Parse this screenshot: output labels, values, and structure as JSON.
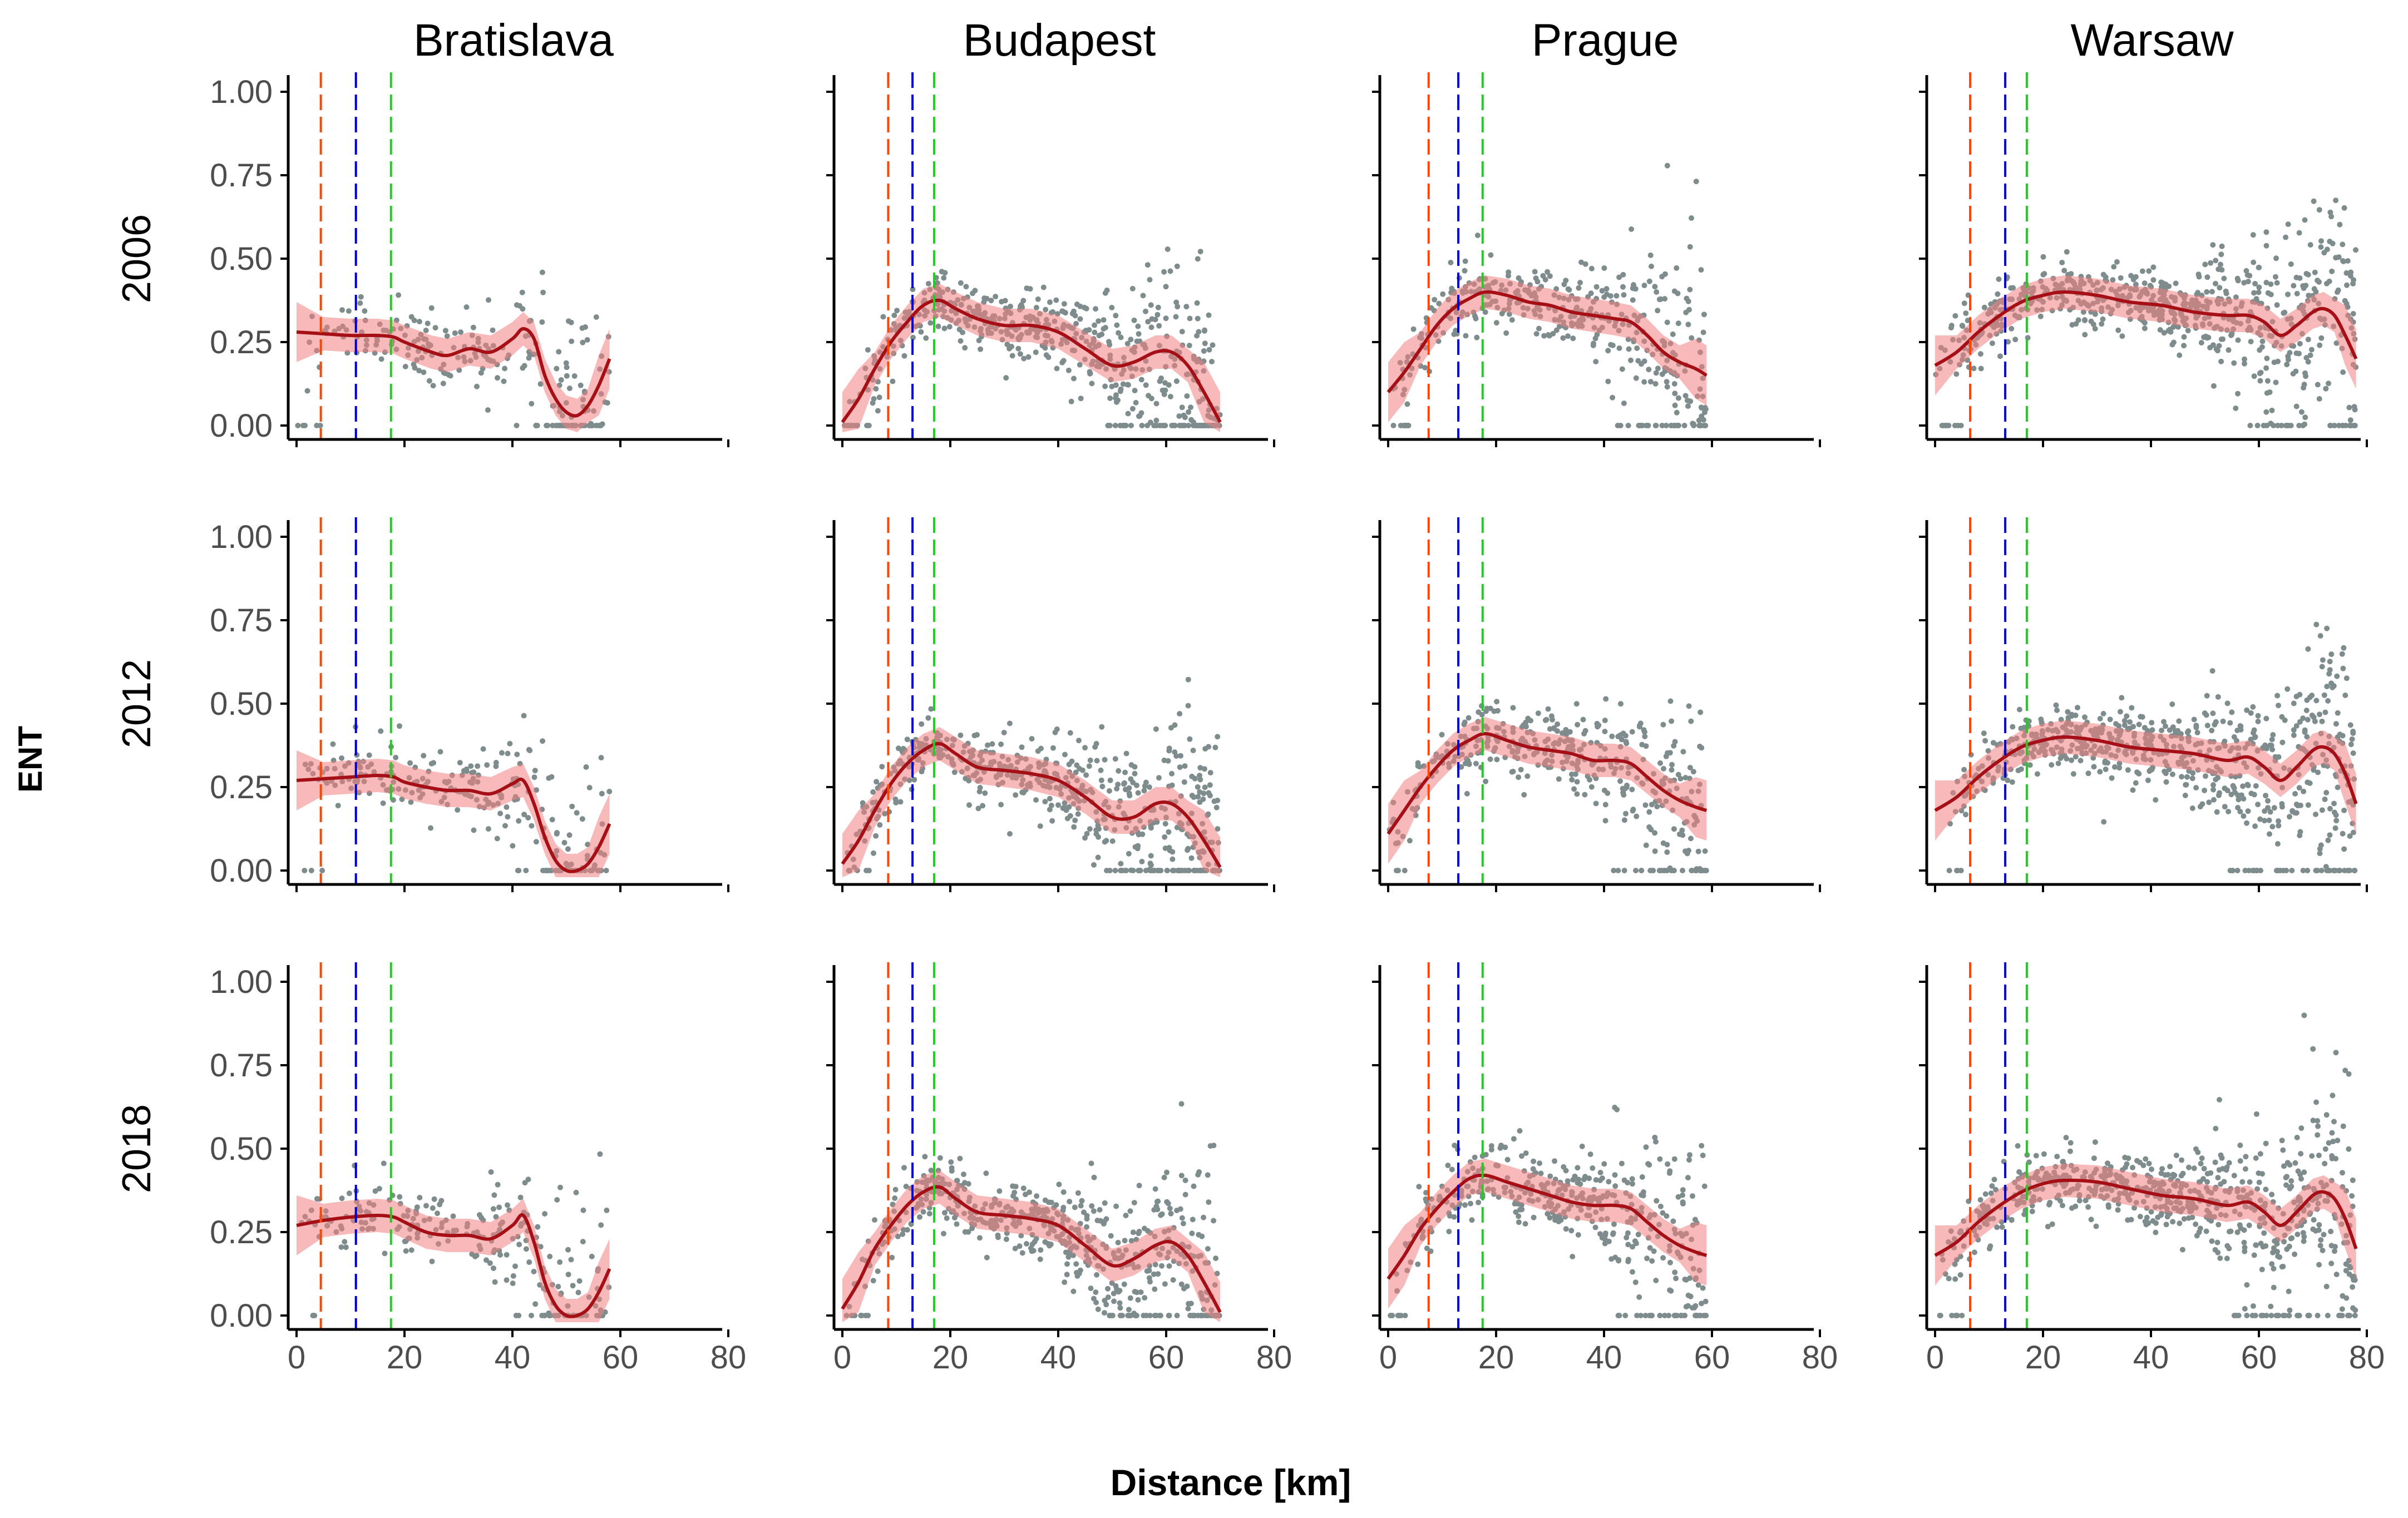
{
  "chart_data": {
    "type": "scatter",
    "ylabel": "ENT",
    "xlabel": "Distance [km]",
    "cities": [
      "Bratislava",
      "Budapest",
      "Prague",
      "Warsaw"
    ],
    "years": [
      "2006",
      "2012",
      "2018"
    ],
    "xlim": [
      0,
      80
    ],
    "ylim": [
      0,
      1
    ],
    "x_ticks": [
      0,
      20,
      40,
      60,
      80
    ],
    "y_ticks": [
      0,
      0.25,
      0.5,
      0.75,
      1
    ],
    "x_tick_labels": [
      "0",
      "20",
      "40",
      "60",
      "80"
    ],
    "y_tick_labels": [
      "0.00",
      "0.25",
      "0.50",
      "0.75",
      "1.00"
    ],
    "colors": {
      "points": "#7f8c8d",
      "smooth_line": "#a50f15",
      "confidence_band": "#f08080",
      "vline_1": "#ff4500",
      "vline_2": "#0000cd",
      "vline_3": "#22cc22",
      "axis": "#000000",
      "tick_label": "#4d4d4d"
    },
    "panels": {
      "Bratislava": {
        "xmax": 58,
        "vlines": [
          4.5,
          11,
          17.5
        ],
        "point_density": 40,
        "smooth": {
          "2006": [
            [
              0,
              0.28
            ],
            [
              5,
              0.275
            ],
            [
              10,
              0.27
            ],
            [
              15,
              0.27
            ],
            [
              18,
              0.265
            ],
            [
              20,
              0.25
            ],
            [
              25,
              0.22
            ],
            [
              28,
              0.21
            ],
            [
              32,
              0.23
            ],
            [
              36,
              0.22
            ],
            [
              40,
              0.26
            ],
            [
              42,
              0.29
            ],
            [
              44,
              0.26
            ],
            [
              46,
              0.15
            ],
            [
              48,
              0.08
            ],
            [
              50,
              0.04
            ],
            [
              52,
              0.03
            ],
            [
              54,
              0.06
            ],
            [
              56,
              0.12
            ],
            [
              58,
              0.2
            ]
          ],
          "2012": [
            [
              0,
              0.27
            ],
            [
              5,
              0.275
            ],
            [
              10,
              0.28
            ],
            [
              15,
              0.285
            ],
            [
              18,
              0.28
            ],
            [
              20,
              0.265
            ],
            [
              24,
              0.25
            ],
            [
              28,
              0.24
            ],
            [
              32,
              0.24
            ],
            [
              36,
              0.23
            ],
            [
              40,
              0.26
            ],
            [
              42,
              0.27
            ],
            [
              44,
              0.2
            ],
            [
              46,
              0.1
            ],
            [
              48,
              0.03
            ],
            [
              50,
              0.0
            ],
            [
              52,
              0.0
            ],
            [
              54,
              0.02
            ],
            [
              56,
              0.07
            ],
            [
              58,
              0.14
            ]
          ],
          "2018": [
            [
              0,
              0.27
            ],
            [
              5,
              0.285
            ],
            [
              10,
              0.295
            ],
            [
              15,
              0.3
            ],
            [
              18,
              0.295
            ],
            [
              20,
              0.28
            ],
            [
              24,
              0.25
            ],
            [
              28,
              0.24
            ],
            [
              32,
              0.24
            ],
            [
              36,
              0.23
            ],
            [
              40,
              0.27
            ],
            [
              42,
              0.3
            ],
            [
              44,
              0.22
            ],
            [
              46,
              0.1
            ],
            [
              48,
              0.03
            ],
            [
              50,
              0.0
            ],
            [
              52,
              0.0
            ],
            [
              54,
              0.02
            ],
            [
              56,
              0.07
            ],
            [
              58,
              0.14
            ]
          ]
        }
      },
      "Budapest": {
        "xmax": 70,
        "vlines": [
          8.5,
          13,
          17
        ],
        "point_density": 80,
        "smooth": {
          "2006": [
            [
              0,
              0.01
            ],
            [
              3,
              0.08
            ],
            [
              6,
              0.17
            ],
            [
              9,
              0.25
            ],
            [
              12,
              0.31
            ],
            [
              15,
              0.36
            ],
            [
              18,
              0.375
            ],
            [
              21,
              0.35
            ],
            [
              25,
              0.32
            ],
            [
              30,
              0.3
            ],
            [
              35,
              0.3
            ],
            [
              40,
              0.28
            ],
            [
              45,
              0.23
            ],
            [
              50,
              0.18
            ],
            [
              54,
              0.19
            ],
            [
              58,
              0.22
            ],
            [
              61,
              0.22
            ],
            [
              64,
              0.18
            ],
            [
              67,
              0.1
            ],
            [
              70,
              0.01
            ]
          ],
          "2012": [
            [
              0,
              0.02
            ],
            [
              3,
              0.09
            ],
            [
              6,
              0.18
            ],
            [
              9,
              0.26
            ],
            [
              12,
              0.32
            ],
            [
              15,
              0.36
            ],
            [
              18,
              0.38
            ],
            [
              21,
              0.35
            ],
            [
              25,
              0.31
            ],
            [
              30,
              0.3
            ],
            [
              35,
              0.29
            ],
            [
              40,
              0.27
            ],
            [
              45,
              0.22
            ],
            [
              50,
              0.16
            ],
            [
              54,
              0.16
            ],
            [
              58,
              0.2
            ],
            [
              61,
              0.2
            ],
            [
              64,
              0.16
            ],
            [
              67,
              0.09
            ],
            [
              70,
              0.01
            ]
          ],
          "2018": [
            [
              0,
              0.02
            ],
            [
              3,
              0.1
            ],
            [
              6,
              0.2
            ],
            [
              9,
              0.27
            ],
            [
              12,
              0.33
            ],
            [
              15,
              0.37
            ],
            [
              18,
              0.385
            ],
            [
              21,
              0.35
            ],
            [
              25,
              0.31
            ],
            [
              30,
              0.3
            ],
            [
              35,
              0.29
            ],
            [
              40,
              0.27
            ],
            [
              45,
              0.21
            ],
            [
              50,
              0.15
            ],
            [
              54,
              0.17
            ],
            [
              58,
              0.21
            ],
            [
              61,
              0.22
            ],
            [
              64,
              0.18
            ],
            [
              67,
              0.1
            ],
            [
              70,
              0.01
            ]
          ]
        }
      },
      "Prague": {
        "xmax": 59,
        "vlines": [
          7.5,
          13,
          17.5
        ],
        "point_density": 70,
        "smooth": {
          "2006": [
            [
              0,
              0.1
            ],
            [
              3,
              0.16
            ],
            [
              6,
              0.23
            ],
            [
              9,
              0.3
            ],
            [
              12,
              0.35
            ],
            [
              15,
              0.38
            ],
            [
              18,
              0.4
            ],
            [
              22,
              0.39
            ],
            [
              26,
              0.37
            ],
            [
              30,
              0.36
            ],
            [
              34,
              0.34
            ],
            [
              38,
              0.33
            ],
            [
              42,
              0.32
            ],
            [
              45,
              0.31
            ],
            [
              48,
              0.27
            ],
            [
              51,
              0.22
            ],
            [
              54,
              0.19
            ],
            [
              57,
              0.17
            ],
            [
              59,
              0.15
            ]
          ],
          "2012": [
            [
              0,
              0.11
            ],
            [
              3,
              0.18
            ],
            [
              6,
              0.25
            ],
            [
              9,
              0.31
            ],
            [
              12,
              0.36
            ],
            [
              15,
              0.39
            ],
            [
              18,
              0.41
            ],
            [
              22,
              0.39
            ],
            [
              26,
              0.37
            ],
            [
              30,
              0.36
            ],
            [
              34,
              0.35
            ],
            [
              38,
              0.33
            ],
            [
              42,
              0.33
            ],
            [
              45,
              0.32
            ],
            [
              48,
              0.28
            ],
            [
              51,
              0.24
            ],
            [
              54,
              0.21
            ],
            [
              57,
              0.19
            ],
            [
              59,
              0.18
            ]
          ],
          "2018": [
            [
              0,
              0.11
            ],
            [
              3,
              0.18
            ],
            [
              6,
              0.26
            ],
            [
              9,
              0.32
            ],
            [
              12,
              0.37
            ],
            [
              15,
              0.41
            ],
            [
              18,
              0.42
            ],
            [
              22,
              0.4
            ],
            [
              26,
              0.38
            ],
            [
              30,
              0.36
            ],
            [
              34,
              0.34
            ],
            [
              38,
              0.33
            ],
            [
              42,
              0.33
            ],
            [
              45,
              0.32
            ],
            [
              48,
              0.28
            ],
            [
              51,
              0.24
            ],
            [
              54,
              0.21
            ],
            [
              57,
              0.19
            ],
            [
              59,
              0.18
            ]
          ]
        }
      },
      "Warsaw": {
        "xmax": 78,
        "vlines": [
          6.5,
          13,
          17
        ],
        "point_density": 90,
        "smooth": {
          "2006": [
            [
              0,
              0.18
            ],
            [
              4,
              0.22
            ],
            [
              8,
              0.28
            ],
            [
              12,
              0.33
            ],
            [
              16,
              0.37
            ],
            [
              20,
              0.39
            ],
            [
              24,
              0.4
            ],
            [
              30,
              0.39
            ],
            [
              36,
              0.37
            ],
            [
              42,
              0.36
            ],
            [
              48,
              0.34
            ],
            [
              54,
              0.33
            ],
            [
              58,
              0.33
            ],
            [
              61,
              0.31
            ],
            [
              64,
              0.27
            ],
            [
              67,
              0.3
            ],
            [
              70,
              0.34
            ],
            [
              72,
              0.35
            ],
            [
              74,
              0.33
            ],
            [
              76,
              0.27
            ],
            [
              78,
              0.2
            ]
          ],
          "2012": [
            [
              0,
              0.18
            ],
            [
              4,
              0.22
            ],
            [
              8,
              0.28
            ],
            [
              12,
              0.33
            ],
            [
              16,
              0.37
            ],
            [
              20,
              0.39
            ],
            [
              24,
              0.4
            ],
            [
              30,
              0.39
            ],
            [
              36,
              0.37
            ],
            [
              42,
              0.36
            ],
            [
              48,
              0.35
            ],
            [
              54,
              0.33
            ],
            [
              58,
              0.34
            ],
            [
              61,
              0.31
            ],
            [
              64,
              0.27
            ],
            [
              67,
              0.31
            ],
            [
              70,
              0.36
            ],
            [
              72,
              0.37
            ],
            [
              74,
              0.35
            ],
            [
              76,
              0.29
            ],
            [
              78,
              0.2
            ]
          ],
          "2018": [
            [
              0,
              0.18
            ],
            [
              4,
              0.22
            ],
            [
              8,
              0.28
            ],
            [
              12,
              0.33
            ],
            [
              16,
              0.37
            ],
            [
              20,
              0.395
            ],
            [
              24,
              0.405
            ],
            [
              30,
              0.4
            ],
            [
              36,
              0.38
            ],
            [
              42,
              0.36
            ],
            [
              48,
              0.35
            ],
            [
              54,
              0.33
            ],
            [
              58,
              0.34
            ],
            [
              61,
              0.31
            ],
            [
              64,
              0.27
            ],
            [
              67,
              0.31
            ],
            [
              70,
              0.36
            ],
            [
              72,
              0.37
            ],
            [
              74,
              0.35
            ],
            [
              76,
              0.29
            ],
            [
              78,
              0.2
            ]
          ]
        }
      }
    }
  }
}
